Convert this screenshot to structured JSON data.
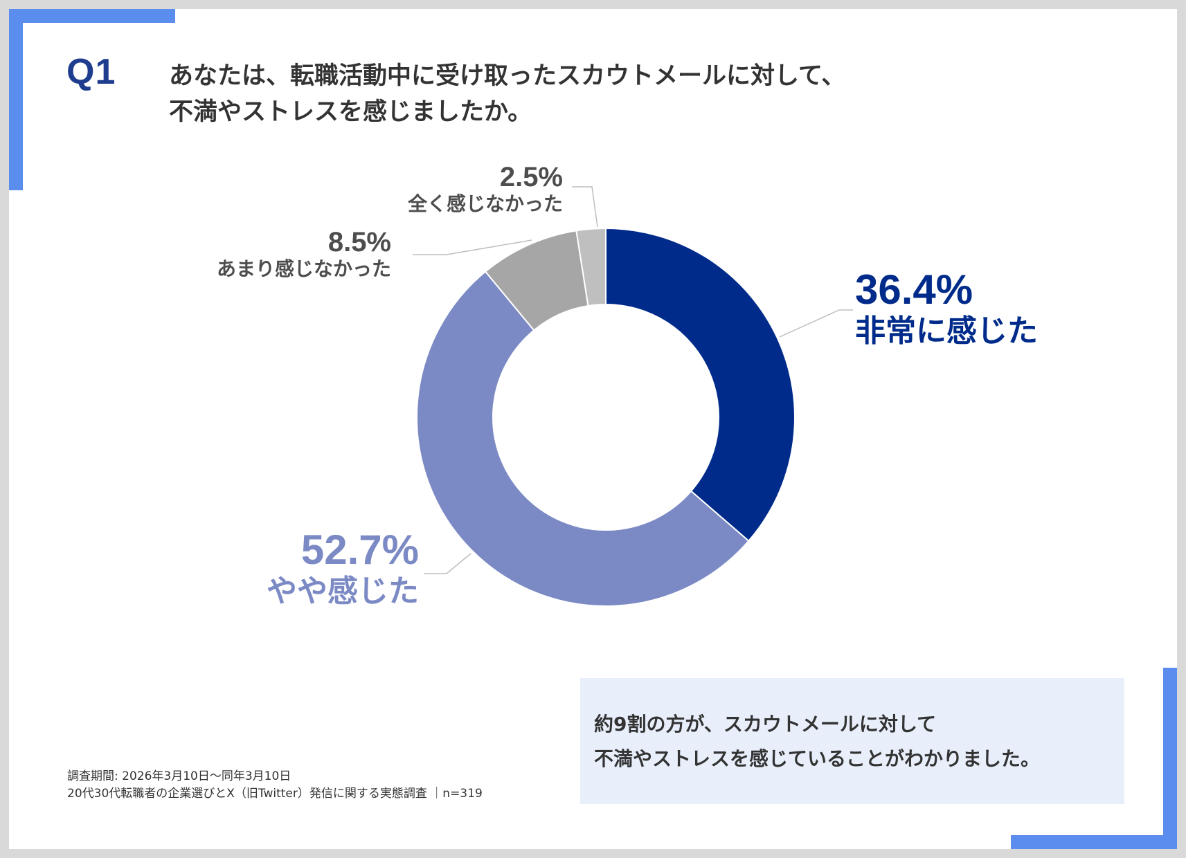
{
  "colors": {
    "frame_accent": "#5b8def",
    "title_blue": "#1e3d8f",
    "summary_bg": "#e8effb"
  },
  "question": {
    "label": "Q1",
    "line1": "あなたは、転職活動中に受け取ったスカウトメールに対して、",
    "line2": "不満やストレスを感じましたか。"
  },
  "chart_data": {
    "type": "pie",
    "variant": "donut",
    "start": "12 o'clock, clockwise",
    "series": [
      {
        "name": "非常に感じた",
        "value": 36.4,
        "label": "36.4%",
        "color": "#002b8a"
      },
      {
        "name": "やや感じた",
        "value": 52.7,
        "label": "52.7%",
        "color": "#7b8ac4"
      },
      {
        "name": "あまり感じなかった",
        "value": 8.5,
        "label": "8.5%",
        "color": "#a6a6a6"
      },
      {
        "name": "全く感じなかった",
        "value": 2.5,
        "label": "2.5%",
        "color": "#bfbfbf"
      }
    ]
  },
  "summary": {
    "line1": "約9割の方が、スカウトメールに対して",
    "line2": "不満やストレスを感じていることがわかりました。"
  },
  "footer": {
    "line1": "調査期間: 2026年3月10日～同年3月10日",
    "line2": "20代30代転職者の企業選びとX（旧Twitter）発信に関する実態調査 ｜n=319"
  }
}
